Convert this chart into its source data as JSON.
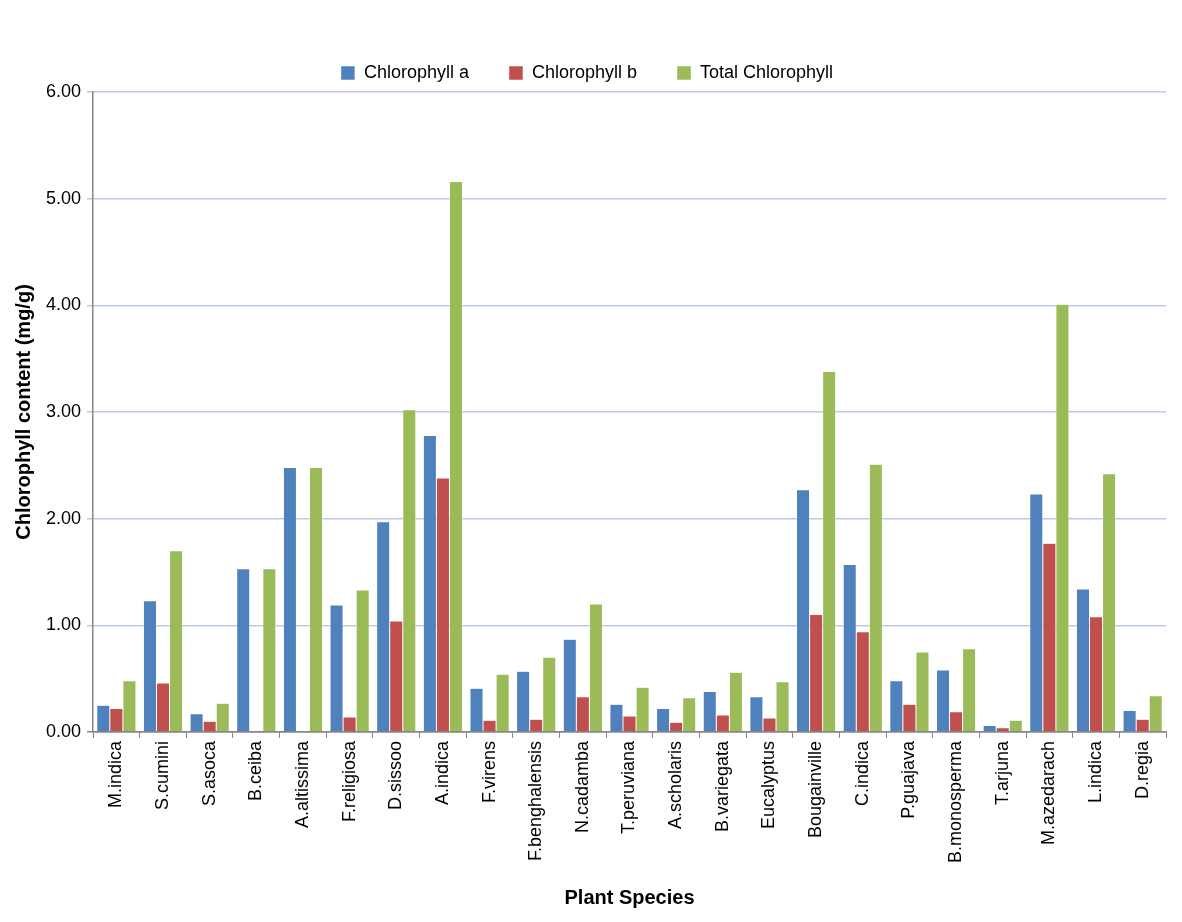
{
  "chart_data": {
    "type": "bar",
    "xlabel": "Plant Species",
    "ylabel": "Chlorophyll content (mg/g)",
    "categories": [
      "M.indica",
      "S.cumini",
      "S.asoca",
      "B.ceiba",
      "A.altissima",
      "F.religiosa",
      "D.sissoo",
      "A.indica",
      "F.virens",
      "F.benghalensis",
      "N.cadamba",
      "T.peruviana",
      "A.scholaris",
      "B.variegata",
      "Eucalyptus",
      "Bougainville",
      "C.indica",
      "P.guajava",
      "B.monosperma",
      "T.arjuna",
      "M.azedarach",
      "L.indica",
      "D.regia"
    ],
    "series": [
      {
        "name": "Chlorophyll a",
        "color": "#4f81bd",
        "values": [
          0.25,
          1.23,
          0.17,
          1.53,
          2.48,
          1.19,
          1.97,
          2.78,
          0.41,
          0.57,
          0.87,
          0.26,
          0.22,
          0.38,
          0.33,
          2.27,
          1.57,
          0.48,
          0.58,
          0.06,
          2.23,
          1.34,
          0.2
        ]
      },
      {
        "name": "Chlorophyll b",
        "color": "#c0504d",
        "values": [
          0.22,
          0.46,
          0.1,
          0,
          0,
          0.14,
          1.04,
          2.38,
          0.11,
          0.12,
          0.33,
          0.15,
          0.09,
          0.16,
          0.13,
          1.1,
          0.94,
          0.26,
          0.19,
          0.04,
          1.77,
          1.08,
          0.12
        ]
      },
      {
        "name": "Total Chlorophyll",
        "color": "#9bbb59",
        "values": [
          0.48,
          1.7,
          0.27,
          1.53,
          2.48,
          1.33,
          3.02,
          5.16,
          0.54,
          0.7,
          1.2,
          0.42,
          0.32,
          0.56,
          0.47,
          3.38,
          2.51,
          0.75,
          0.78,
          0.11,
          4.01,
          2.42,
          0.34
        ]
      }
    ],
    "ylim": [
      0,
      6
    ],
    "yticks": [
      {
        "value": 0,
        "label": "0.00"
      },
      {
        "value": 1,
        "label": "1.00"
      },
      {
        "value": 2,
        "label": "2.00"
      },
      {
        "value": 3,
        "label": "3.00"
      },
      {
        "value": 4,
        "label": "4.00"
      },
      {
        "value": 5,
        "label": "5.00"
      },
      {
        "value": 6,
        "label": "6.00"
      }
    ],
    "grid": "y",
    "legend": "top"
  }
}
